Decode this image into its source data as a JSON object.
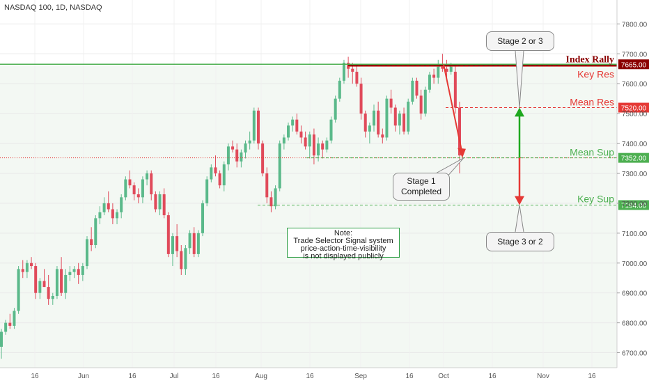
{
  "title": "NASDAQ 100, 1D, NASDAQ",
  "note_lines": [
    "Note:",
    "Trade Selector Signal system",
    "price-action-time-visibility",
    "is not displayed publicly"
  ],
  "callouts": {
    "stage23": "Stage 2 or 3",
    "stage32": "Stage 3 or 2",
    "stage1_line1": "Stage 1",
    "stage1_line2": "Completed"
  },
  "chart_data": {
    "type": "candlestick",
    "title": "NASDAQ 100, 1D, NASDAQ",
    "y_axis": {
      "min": 6650,
      "max": 7880,
      "ticks": [
        6700,
        6800,
        6900,
        7000,
        7100,
        7200,
        7300,
        7400,
        7500,
        7600,
        7700,
        7800
      ]
    },
    "x_axis": {
      "ticks": [
        "16",
        "Jun",
        "16",
        "Jul",
        "16",
        "Aug",
        "16",
        "Sep",
        "16",
        "Oct",
        "16",
        "Nov",
        "16"
      ]
    },
    "levels": [
      {
        "label": "Index Rally",
        "value": 7665.0,
        "price_tag": "7665.00",
        "color": "#8b0000"
      },
      {
        "label": "Key Res",
        "value": 7658,
        "color": "#e53935"
      },
      {
        "label": "Mean Res",
        "value": 7520.0,
        "price_tag": "7520.00",
        "color": "#e53935"
      },
      {
        "label": "Mean Sup",
        "value": 7352.0,
        "price_tag": "7352.00",
        "color": "#4caf50"
      },
      {
        "label": "Key Sup",
        "value": 7194.0,
        "price_tag": "7194.00",
        "color": "#4caf50"
      }
    ],
    "ohlc": [
      [
        6720,
        6780,
        6680,
        6770
      ],
      [
        6770,
        6810,
        6760,
        6800
      ],
      [
        6800,
        6830,
        6780,
        6790
      ],
      [
        6790,
        6850,
        6780,
        6840
      ],
      [
        6840,
        6990,
        6830,
        6980
      ],
      [
        6980,
        7010,
        6950,
        6970
      ],
      [
        6970,
        7010,
        6950,
        7000
      ],
      [
        7000,
        7020,
        6980,
        6990
      ],
      [
        6990,
        7000,
        6880,
        6900
      ],
      [
        6900,
        6950,
        6880,
        6940
      ],
      [
        6940,
        6980,
        6920,
        6920
      ],
      [
        6920,
        6960,
        6860,
        6880
      ],
      [
        6880,
        6900,
        6860,
        6890
      ],
      [
        6890,
        6990,
        6880,
        6980
      ],
      [
        6980,
        7020,
        6890,
        6900
      ],
      [
        6900,
        6980,
        6880,
        6960
      ],
      [
        6960,
        6990,
        6940,
        6970
      ],
      [
        6970,
        6990,
        6950,
        6980
      ],
      [
        6980,
        7000,
        6930,
        6960
      ],
      [
        6960,
        7000,
        6940,
        6990
      ],
      [
        6990,
        7090,
        6980,
        7080
      ],
      [
        7080,
        7120,
        7040,
        7060
      ],
      [
        7060,
        7160,
        7050,
        7150
      ],
      [
        7150,
        7190,
        7130,
        7170
      ],
      [
        7170,
        7220,
        7160,
        7200
      ],
      [
        7200,
        7240,
        7170,
        7180
      ],
      [
        7180,
        7200,
        7130,
        7150
      ],
      [
        7150,
        7180,
        7130,
        7170
      ],
      [
        7170,
        7230,
        7150,
        7220
      ],
      [
        7220,
        7290,
        7210,
        7280
      ],
      [
        7280,
        7310,
        7250,
        7260
      ],
      [
        7260,
        7270,
        7210,
        7230
      ],
      [
        7230,
        7250,
        7200,
        7220
      ],
      [
        7220,
        7290,
        7200,
        7280
      ],
      [
        7280,
        7310,
        7260,
        7300
      ],
      [
        7300,
        7310,
        7210,
        7230
      ],
      [
        7230,
        7240,
        7170,
        7180
      ],
      [
        7180,
        7240,
        7160,
        7230
      ],
      [
        7230,
        7250,
        7150,
        7160
      ],
      [
        7160,
        7170,
        7020,
        7030
      ],
      [
        7030,
        7100,
        6990,
        7090
      ],
      [
        7090,
        7130,
        7020,
        7040
      ],
      [
        7040,
        7060,
        6960,
        6980
      ],
      [
        6980,
        7060,
        6960,
        7050
      ],
      [
        7050,
        7110,
        7030,
        7100
      ],
      [
        7100,
        7120,
        7020,
        7030
      ],
      [
        7030,
        7110,
        7020,
        7100
      ],
      [
        7100,
        7210,
        7090,
        7200
      ],
      [
        7200,
        7290,
        7190,
        7280
      ],
      [
        7280,
        7330,
        7270,
        7320
      ],
      [
        7320,
        7360,
        7290,
        7300
      ],
      [
        7300,
        7310,
        7250,
        7260
      ],
      [
        7260,
        7340,
        7240,
        7330
      ],
      [
        7330,
        7400,
        7310,
        7390
      ],
      [
        7390,
        7410,
        7370,
        7380
      ],
      [
        7380,
        7400,
        7320,
        7340
      ],
      [
        7340,
        7380,
        7320,
        7370
      ],
      [
        7370,
        7410,
        7350,
        7400
      ],
      [
        7400,
        7440,
        7380,
        7410
      ],
      [
        7410,
        7520,
        7400,
        7510
      ],
      [
        7510,
        7520,
        7380,
        7400
      ],
      [
        7400,
        7410,
        7290,
        7300
      ],
      [
        7300,
        7320,
        7200,
        7220
      ],
      [
        7220,
        7240,
        7170,
        7190
      ],
      [
        7190,
        7260,
        7180,
        7250
      ],
      [
        7250,
        7410,
        7240,
        7400
      ],
      [
        7400,
        7430,
        7380,
        7420
      ],
      [
        7420,
        7470,
        7410,
        7460
      ],
      [
        7460,
        7490,
        7440,
        7480
      ],
      [
        7480,
        7500,
        7430,
        7440
      ],
      [
        7440,
        7460,
        7400,
        7420
      ],
      [
        7420,
        7440,
        7380,
        7390
      ],
      [
        7390,
        7440,
        7350,
        7430
      ],
      [
        7430,
        7450,
        7330,
        7360
      ],
      [
        7360,
        7420,
        7340,
        7400
      ],
      [
        7400,
        7410,
        7350,
        7380
      ],
      [
        7380,
        7420,
        7370,
        7410
      ],
      [
        7410,
        7490,
        7400,
        7480
      ],
      [
        7480,
        7560,
        7470,
        7550
      ],
      [
        7550,
        7620,
        7540,
        7610
      ],
      [
        7610,
        7680,
        7600,
        7670
      ],
      [
        7670,
        7690,
        7620,
        7650
      ],
      [
        7650,
        7670,
        7600,
        7640
      ],
      [
        7640,
        7660,
        7590,
        7600
      ],
      [
        7600,
        7620,
        7480,
        7500
      ],
      [
        7500,
        7510,
        7420,
        7440
      ],
      [
        7440,
        7470,
        7400,
        7460
      ],
      [
        7460,
        7530,
        7440,
        7510
      ],
      [
        7510,
        7540,
        7420,
        7430
      ],
      [
        7430,
        7450,
        7400,
        7420
      ],
      [
        7420,
        7560,
        7410,
        7550
      ],
      [
        7550,
        7580,
        7500,
        7520
      ],
      [
        7520,
        7530,
        7440,
        7460
      ],
      [
        7460,
        7510,
        7430,
        7500
      ],
      [
        7500,
        7520,
        7430,
        7440
      ],
      [
        7440,
        7550,
        7430,
        7540
      ],
      [
        7540,
        7620,
        7530,
        7610
      ],
      [
        7610,
        7620,
        7550,
        7560
      ],
      [
        7560,
        7580,
        7480,
        7500
      ],
      [
        7500,
        7590,
        7490,
        7580
      ],
      [
        7580,
        7640,
        7570,
        7630
      ],
      [
        7630,
        7650,
        7600,
        7620
      ],
      [
        7620,
        7680,
        7600,
        7660
      ],
      [
        7660,
        7700,
        7640,
        7650
      ],
      [
        7650,
        7680,
        7620,
        7640
      ],
      [
        7640,
        7670,
        7630,
        7660
      ],
      [
        7640,
        7660,
        7500,
        7520
      ],
      [
        7520,
        7540,
        7300,
        7360
      ]
    ]
  }
}
